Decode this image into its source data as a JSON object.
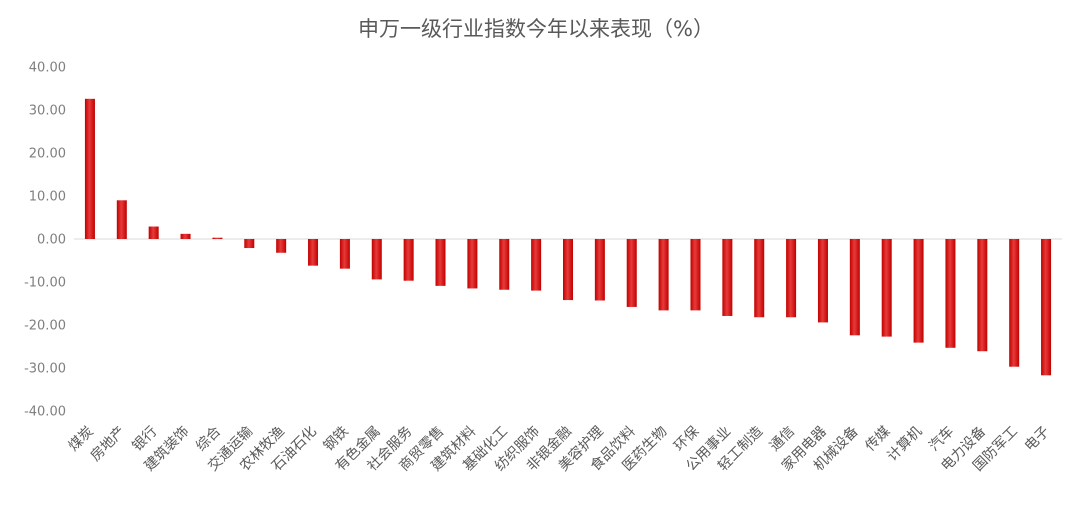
{
  "chart_data": {
    "type": "bar",
    "title": "申万一级行业指数今年以来表现（%）",
    "categories": [
      "煤炭",
      "房地产",
      "银行",
      "建筑装饰",
      "综合",
      "交通运输",
      "农林牧渔",
      "石油石化",
      "钢铁",
      "有色金属",
      "社会服务",
      "商贸零售",
      "建筑材料",
      "基础化工",
      "纺织服饰",
      "非银金融",
      "美容护理",
      "食品饮料",
      "医药生物",
      "环保",
      "公用事业",
      "轻工制造",
      "通信",
      "家用电器",
      "机械设备",
      "传媒",
      "计算机",
      "汽车",
      "电力设备",
      "国防军工",
      "电子"
    ],
    "values": [
      32.6,
      9.0,
      2.9,
      1.2,
      0.3,
      -2.1,
      -3.2,
      -6.2,
      -6.9,
      -9.4,
      -9.7,
      -10.9,
      -11.5,
      -11.8,
      -12.0,
      -14.2,
      -14.3,
      -15.8,
      -16.6,
      -16.6,
      -17.9,
      -18.2,
      -18.2,
      -19.4,
      -22.4,
      -22.7,
      -24.1,
      -25.3,
      -26.1,
      -29.7,
      -31.7
    ],
    "ylim": [
      -40,
      40
    ],
    "yticks": [
      "40.00",
      "30.00",
      "20.00",
      "10.00",
      "0.00",
      "-10.00",
      "-20.00",
      "-30.00",
      "-40.00"
    ],
    "ytick_values": [
      40,
      30,
      20,
      10,
      0,
      -10,
      -20,
      -30,
      -40
    ],
    "xlabel": "",
    "ylabel": "",
    "grid": false,
    "legend": "none",
    "bar_color": "#c00000",
    "bar_highlight": "#e83a3a",
    "axis_color": "#d9d9d9"
  }
}
